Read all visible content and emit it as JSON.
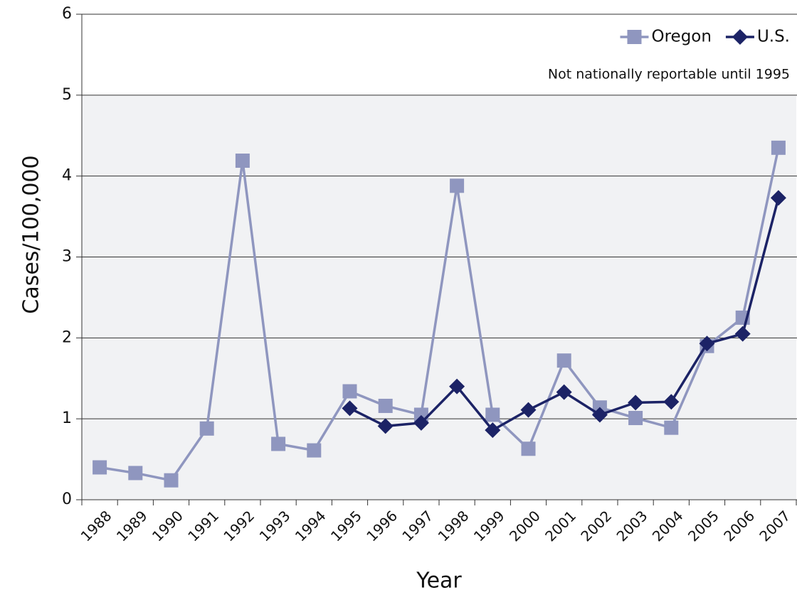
{
  "chart_data": {
    "type": "line",
    "xlabel": "Year",
    "ylabel": "Cases/100,000",
    "annotation": "Not nationally reportable until 1995",
    "categories": [
      "1988",
      "1989",
      "1990",
      "1991",
      "1992",
      "1993",
      "1994",
      "1995",
      "1996",
      "1997",
      "1998",
      "1999",
      "2000",
      "2001",
      "2002",
      "2003",
      "2004",
      "2005",
      "2006",
      "2007"
    ],
    "series": [
      {
        "name": "Oregon",
        "color": "#8f96bf",
        "marker": "square",
        "values": [
          0.4,
          0.33,
          0.24,
          0.88,
          4.19,
          0.69,
          0.61,
          1.34,
          1.16,
          1.05,
          3.88,
          1.05,
          0.63,
          1.72,
          1.14,
          1.01,
          0.89,
          1.9,
          2.25,
          4.35
        ]
      },
      {
        "name": "U.S.",
        "color": "#1c2366",
        "marker": "diamond",
        "values": [
          null,
          null,
          null,
          null,
          null,
          null,
          null,
          1.13,
          0.91,
          0.95,
          1.4,
          0.86,
          1.11,
          1.33,
          1.05,
          1.2,
          1.21,
          1.93,
          2.05,
          3.73
        ]
      }
    ],
    "ylim": [
      0,
      6
    ],
    "yticks": [
      0,
      1,
      2,
      3,
      4,
      5,
      6
    ],
    "grid": true,
    "legend": "top-right"
  }
}
